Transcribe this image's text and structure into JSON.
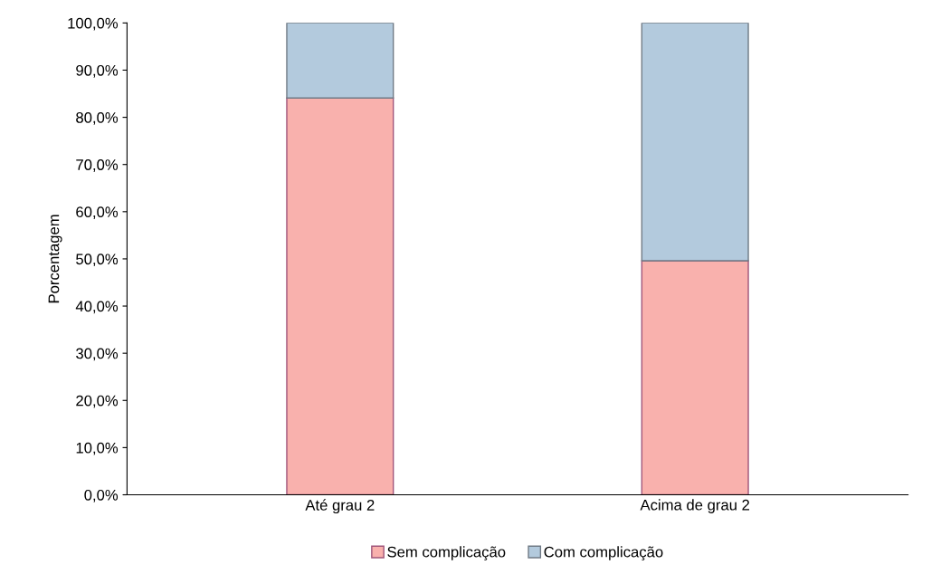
{
  "chart_data": {
    "type": "bar",
    "stacked": true,
    "ylabel": "Porcentagem",
    "categories": [
      "Até grau 2",
      "Acima de grau 2"
    ],
    "series": [
      {
        "name": "Sem complicação",
        "color": "#f9b1ad",
        "values": [
          84.1,
          49.6
        ]
      },
      {
        "name": "Com complicação",
        "color": "#b3cadd",
        "values": [
          15.9,
          50.4
        ]
      }
    ],
    "ylim": [
      0,
      100
    ],
    "yticks": [
      {
        "value": 0,
        "label": "0,0%"
      },
      {
        "value": 10,
        "label": "10,0%"
      },
      {
        "value": 20,
        "label": "20,0%"
      },
      {
        "value": 30,
        "label": "30,0%"
      },
      {
        "value": 40,
        "label": "40,0%"
      },
      {
        "value": 50,
        "label": "50,0%"
      },
      {
        "value": 60,
        "label": "60,0%"
      },
      {
        "value": 70,
        "label": "70,0%"
      },
      {
        "value": 80,
        "label": "80,0%"
      },
      {
        "value": 90,
        "label": "90,0%"
      },
      {
        "value": 100,
        "label": "100,0%"
      }
    ],
    "grid": false,
    "legend": "bottom"
  }
}
